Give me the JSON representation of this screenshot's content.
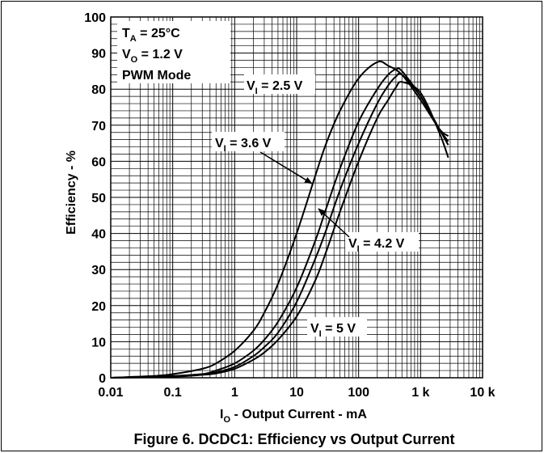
{
  "chart_data": {
    "type": "line",
    "title": "",
    "caption": "Figure 6. DCDC1: Efficiency vs Output Current",
    "xlabel": {
      "main": "I",
      "sub": "O",
      "rest": " - Output Current - mA"
    },
    "ylabel": "Efficiency - %",
    "x_scale": "log",
    "xlim": [
      0.01,
      10000
    ],
    "ylim": [
      0,
      100
    ],
    "x_ticks": [
      0.01,
      0.1,
      1,
      10,
      100,
      1000,
      10000
    ],
    "x_tick_labels": [
      "0.01",
      "0.1",
      "1",
      "10",
      "100",
      "1 k",
      "10 k"
    ],
    "y_ticks": [
      0,
      10,
      20,
      30,
      40,
      50,
      60,
      70,
      80,
      90,
      100
    ],
    "y_tick_labels": [
      "0",
      "10",
      "20",
      "30",
      "40",
      "50",
      "60",
      "70",
      "80",
      "90",
      "100"
    ],
    "grid": true,
    "conditions": [
      {
        "main": "T",
        "sub": "A",
        "rest": " = 25°C"
      },
      {
        "main": "V",
        "sub": "O",
        "rest": " = 1.2 V"
      },
      {
        "main": "PWM Mode",
        "sub": "",
        "rest": ""
      }
    ],
    "series": [
      {
        "name": "VI = 2.5 V",
        "label": {
          "main": "V",
          "sub": "I",
          "rest": " = 2.5 V"
        },
        "x": [
          0.01,
          0.05,
          0.1,
          0.3,
          0.5,
          1,
          2,
          3,
          5,
          10,
          20,
          30,
          50,
          100,
          200,
          300,
          500,
          1000,
          2000,
          2800
        ],
        "y": [
          0,
          0.5,
          1,
          2.5,
          4,
          7.5,
          13,
          18,
          26,
          40,
          56,
          65,
          74,
          83,
          87.5,
          86.5,
          84,
          77,
          69,
          67
        ]
      },
      {
        "name": "VI = 3.6 V",
        "label": {
          "main": "V",
          "sub": "I",
          "rest": " = 3.6 V"
        },
        "x": [
          0.01,
          0.1,
          0.3,
          0.5,
          1,
          2,
          3,
          5,
          10,
          20,
          30,
          50,
          100,
          200,
          300,
          400,
          500,
          1000,
          2000,
          2800
        ],
        "y": [
          0,
          0.5,
          1,
          2,
          4,
          7.5,
          10.5,
          15.5,
          25,
          38,
          47,
          58,
          71,
          80,
          84,
          85.5,
          85,
          78,
          69,
          65.5
        ]
      },
      {
        "name": "VI = 4.2 V",
        "label": {
          "main": "V",
          "sub": "I",
          "rest": " = 4.2 V"
        },
        "x": [
          0.01,
          0.1,
          0.3,
          0.5,
          1,
          2,
          3,
          5,
          10,
          20,
          30,
          50,
          100,
          200,
          300,
          400,
          500,
          1000,
          2000,
          2800
        ],
        "y": [
          0,
          0.5,
          1,
          1.5,
          3,
          6,
          8.5,
          12.5,
          21,
          33,
          41,
          52,
          65,
          76,
          81,
          83.5,
          84,
          78,
          69,
          64.5
        ]
      },
      {
        "name": "VI = 5 V",
        "label": {
          "main": "V",
          "sub": "I",
          "rest": " = 5 V"
        },
        "x": [
          0.01,
          0.1,
          0.3,
          0.5,
          1,
          2,
          3,
          5,
          10,
          20,
          30,
          50,
          100,
          200,
          300,
          400,
          500,
          1000,
          2000,
          2800
        ],
        "y": [
          0,
          0.3,
          0.8,
          1.2,
          2.5,
          5,
          7,
          10.5,
          17,
          27,
          35,
          46,
          60,
          72,
          77,
          80.5,
          82,
          79,
          68,
          61
        ]
      }
    ]
  }
}
